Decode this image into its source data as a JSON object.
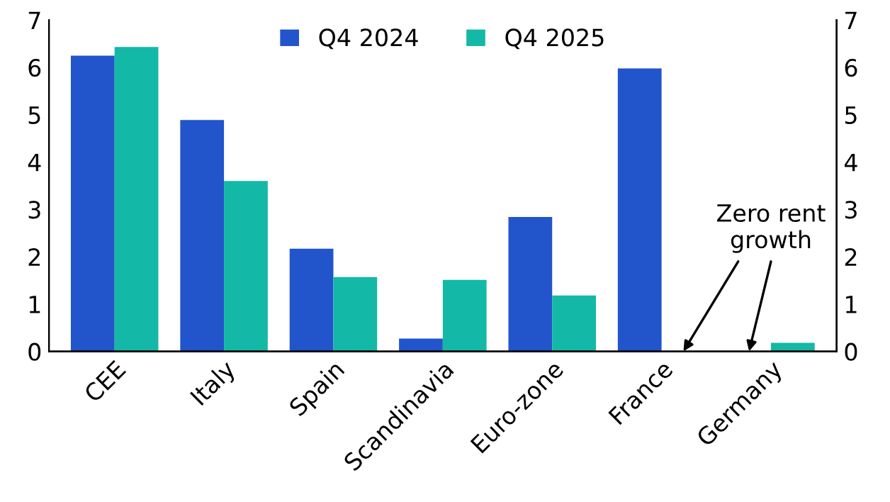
{
  "chart_data": {
    "type": "bar",
    "categories": [
      "CEE",
      "Italy",
      "Spain",
      "Scandinavia",
      "Euro-zone",
      "France",
      "Germany"
    ],
    "series": [
      {
        "name": "Q4 2024",
        "color": "#2255cc",
        "values": [
          6.25,
          4.89,
          2.17,
          0.27,
          2.84,
          5.98,
          0
        ]
      },
      {
        "name": "Q4 2025",
        "color": "#14b8a6",
        "values": [
          6.43,
          3.6,
          1.57,
          1.51,
          1.18,
          0,
          0.18
        ]
      }
    ],
    "ylim": [
      0,
      7
    ],
    "yticks": [
      0,
      1,
      2,
      3,
      4,
      5,
      6,
      7
    ],
    "y2lim": [
      0,
      7
    ],
    "y2ticks": [
      0,
      1,
      2,
      3,
      4,
      5,
      6,
      7
    ],
    "annotations": [
      "Zero rent\ngrowth"
    ],
    "grid": false,
    "legend": "top"
  }
}
